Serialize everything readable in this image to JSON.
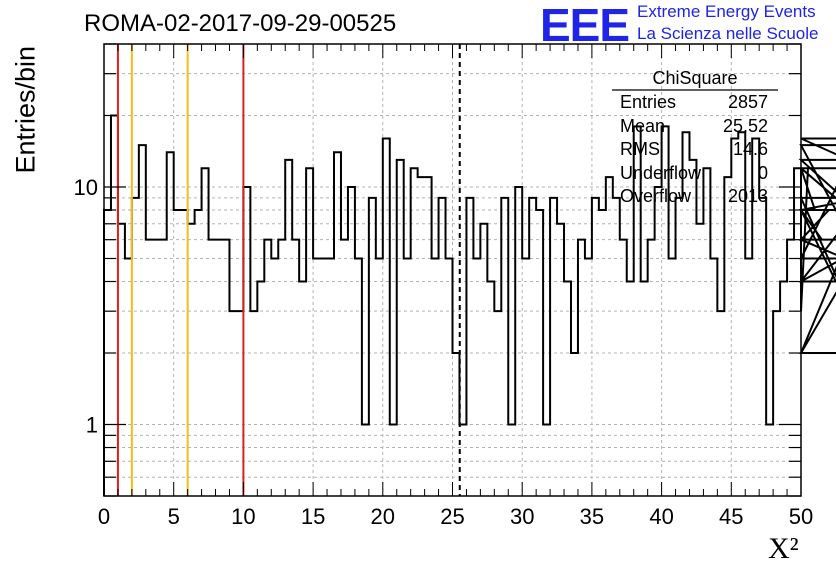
{
  "title": "ROMA-02-2017-09-29-00525",
  "logo": {
    "mark": "EEE",
    "line1": "Extreme Energy Events",
    "line2": "La Scienza nelle Scuole"
  },
  "stats": {
    "name": "ChiSquare",
    "rows": [
      {
        "key": "Entries",
        "value": "2857"
      },
      {
        "key": "Mean",
        "value": "25.52"
      },
      {
        "key": "RMS",
        "value": "14.6"
      },
      {
        "key": "Underflow",
        "value": "0"
      },
      {
        "key": "Overflow",
        "value": "2013"
      }
    ]
  },
  "chart_data": {
    "type": "histogram",
    "title": "ROMA-02-2017-09-29-00525",
    "xlabel": "X²",
    "ylabel": "Entries/bin",
    "xlim": [
      0,
      50
    ],
    "ylim": [
      0.5,
      40
    ],
    "yscale": "log",
    "grid": true,
    "bin_width": 0.5,
    "x_ticks": [
      "0",
      "5",
      "10",
      "15",
      "20",
      "25",
      "30",
      "35",
      "40",
      "45",
      "50"
    ],
    "y_ticks": [
      "1",
      "10"
    ],
    "values": [
      8,
      20,
      7,
      5,
      9,
      15,
      6,
      6,
      6,
      14,
      8,
      8,
      7,
      8,
      12,
      6,
      6,
      6,
      3,
      3,
      10,
      3,
      4,
      6,
      5,
      6,
      13,
      6,
      4,
      12,
      5,
      5,
      5,
      14,
      6,
      10,
      5,
      1,
      9,
      5,
      16,
      1,
      13,
      5,
      12,
      11,
      11,
      5,
      9,
      5,
      2,
      1,
      9,
      5,
      7,
      4,
      3,
      9,
      1,
      10,
      5,
      9,
      8,
      1,
      9,
      7,
      4,
      2,
      6,
      5,
      9,
      8,
      11,
      9,
      6,
      4,
      18,
      4,
      6,
      10,
      18,
      5,
      9,
      17,
      13,
      7,
      12,
      5,
      3,
      11,
      16,
      17,
      5,
      16,
      9,
      1,
      3,
      4,
      6,
      12,
      3,
      12,
      8,
      6,
      8,
      4,
      5,
      13,
      8,
      9,
      2,
      12,
      6,
      6,
      4,
      15,
      2,
      2,
      16,
      9
    ],
    "reference_lines": [
      {
        "x": 1,
        "color": "#dd1f1f",
        "style": "solid"
      },
      {
        "x": 2,
        "color": "#f0be14",
        "style": "solid"
      },
      {
        "x": 6,
        "color": "#f0be14",
        "style": "solid"
      },
      {
        "x": 10,
        "color": "#dd1f1f",
        "style": "solid"
      },
      {
        "x": 25.52,
        "color": "#000000",
        "style": "dashed"
      }
    ]
  },
  "colors": {
    "histogram": "#000000",
    "grid": "#b3b3b3",
    "logo": "#1f24e6"
  }
}
